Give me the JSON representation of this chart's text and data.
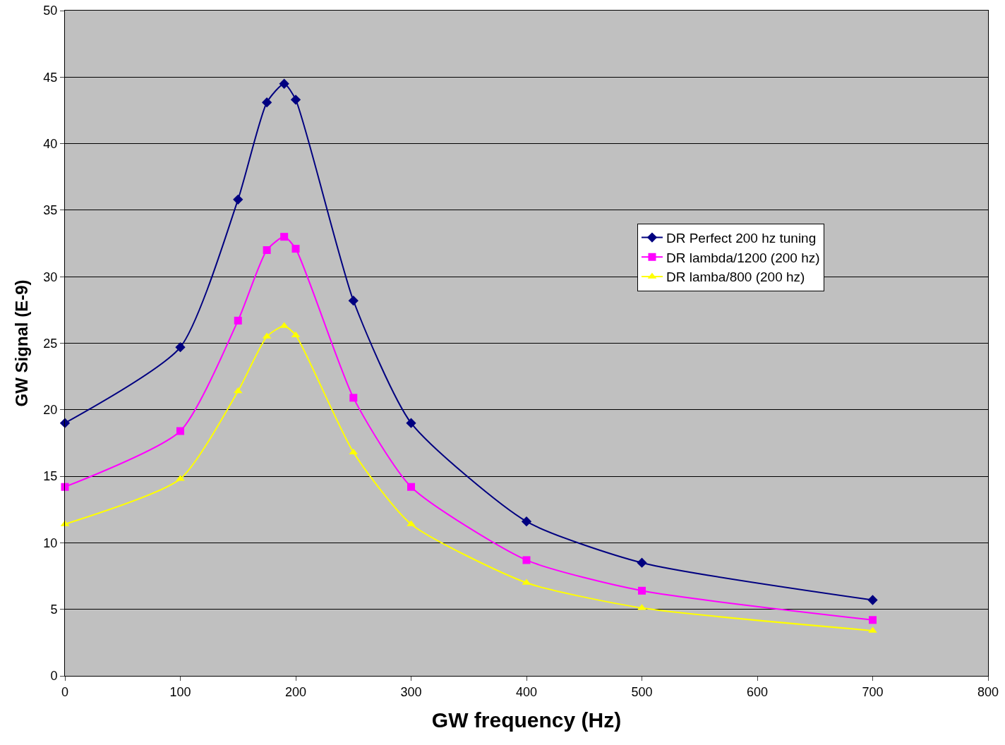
{
  "chart_data": {
    "type": "line",
    "xlabel": "GW frequency (Hz)",
    "ylabel": "GW Signal (E-9)",
    "x": [
      0,
      100,
      150,
      175,
      190,
      200,
      250,
      300,
      400,
      500,
      700
    ],
    "series": [
      {
        "name": "DR Perfect 200 hz tuning",
        "color": "#000080",
        "marker": "diamond",
        "values": [
          19.0,
          24.7,
          35.8,
          43.1,
          44.5,
          43.3,
          28.2,
          19.0,
          11.6,
          8.5,
          5.7
        ]
      },
      {
        "name": "DR lambda/1200 (200 hz)",
        "color": "#ff00ff",
        "marker": "square",
        "values": [
          14.2,
          18.4,
          26.7,
          32.0,
          33.0,
          32.1,
          20.9,
          14.2,
          8.7,
          6.4,
          4.2
        ]
      },
      {
        "name": "DR lamba/800 (200 hz)",
        "color": "#ffff00",
        "marker": "triangle",
        "values": [
          11.4,
          14.8,
          21.4,
          25.5,
          26.3,
          25.6,
          16.8,
          11.4,
          7.0,
          5.1,
          3.4
        ]
      }
    ],
    "xlim": [
      0,
      800
    ],
    "xticks": [
      0,
      100,
      200,
      300,
      400,
      500,
      600,
      700,
      800
    ],
    "ylim": [
      0,
      50
    ],
    "yticks": [
      0,
      5,
      10,
      15,
      20,
      25,
      30,
      35,
      40,
      45,
      50
    ],
    "grid": "y",
    "legend": "right",
    "line_style": "solid"
  }
}
